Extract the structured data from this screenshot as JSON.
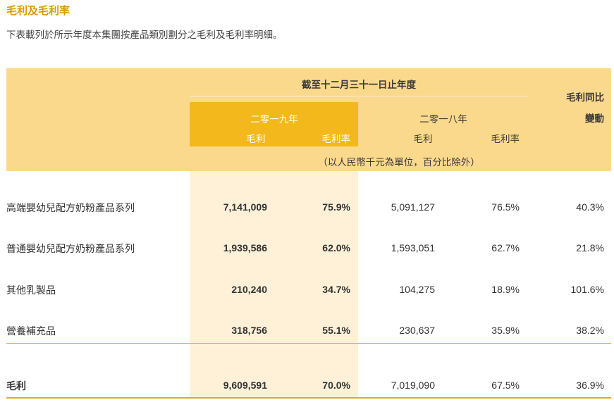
{
  "heading": "毛利及毛利率",
  "intro": "下表載列於所示年度本集團按產品類別劃分之毛利及毛利率明細。",
  "table": {
    "period_header": "截至十二月三十一日止年度",
    "change_header_line1": "毛利同比",
    "change_header_line2": "變動",
    "year_2019": "二零一九年",
    "year_2018": "二零一八年",
    "col_gross_profit": "毛利",
    "col_margin": "毛利率",
    "unit_note": "（以人民幣千元為單位，百分比除外）",
    "rows": [
      {
        "label": "高端嬰幼兒配方奶粉產品系列",
        "gp_2019": "7,141,009",
        "m_2019": "75.9%",
        "gp_2018": "5,091,127",
        "m_2018": "76.5%",
        "change": "40.3%"
      },
      {
        "label": "普通嬰幼兒配方奶粉產品系列",
        "gp_2019": "1,939,586",
        "m_2019": "62.0%",
        "gp_2018": "1,593,051",
        "m_2018": "62.7%",
        "change": "21.8%"
      },
      {
        "label": "其他乳製品",
        "gp_2019": "210,240",
        "m_2019": "34.7%",
        "gp_2018": "104,275",
        "m_2018": "18.9%",
        "change": "101.6%"
      },
      {
        "label": "營養補充品",
        "gp_2019": "318,756",
        "m_2019": "55.1%",
        "gp_2018": "230,637",
        "m_2018": "35.9%",
        "change": "38.2%"
      }
    ],
    "total": {
      "label": "毛利",
      "gp_2019": "9,609,591",
      "m_2019": "70.0%",
      "gp_2018": "7,019,090",
      "m_2018": "67.5%",
      "change": "36.9%"
    }
  },
  "colors": {
    "accent": "#d99a06",
    "header_band": "#fbd98c",
    "highlight": "#f2b81c",
    "highlight_body": "#fef1d8"
  }
}
